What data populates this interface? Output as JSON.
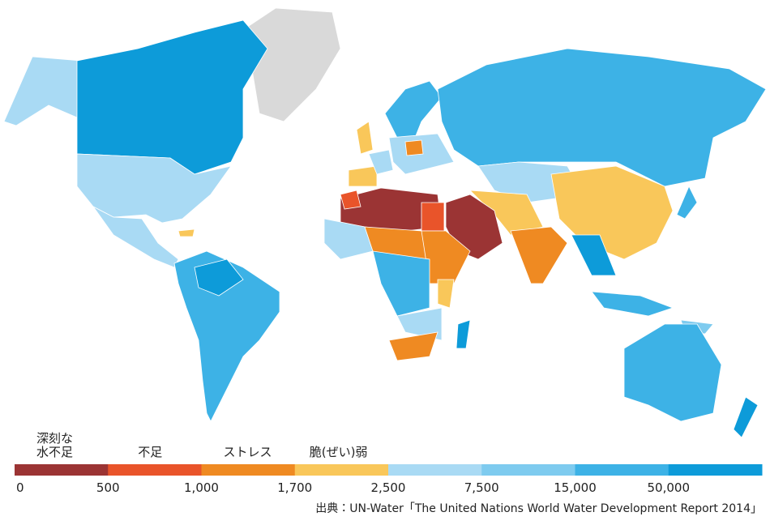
{
  "legend": {
    "category_labels": [
      [
        "深刻な",
        "水不足"
      ],
      [
        "不足"
      ],
      [
        "ストレス"
      ],
      [
        "脆(ぜい)弱"
      ]
    ],
    "colors": [
      "#9b3434",
      "#e9542a",
      "#ef8a22",
      "#f9c75a",
      "#a9daf4",
      "#7ecbef",
      "#3db2e6",
      "#0d9bd9"
    ],
    "ticks": [
      0,
      500,
      {
        "value": 1000,
        "label": "1,000"
      },
      {
        "value": 1700,
        "label": "1,700"
      },
      {
        "value": 2500,
        "label": "2,500"
      },
      {
        "value": 7500,
        "label": "7,500"
      },
      {
        "value": 15000,
        "label": "15,000"
      },
      {
        "value": 50000,
        "label": "50,000"
      }
    ]
  },
  "source": "出典：UN-Water「The United Nations World Water Development Report 2014」"
}
